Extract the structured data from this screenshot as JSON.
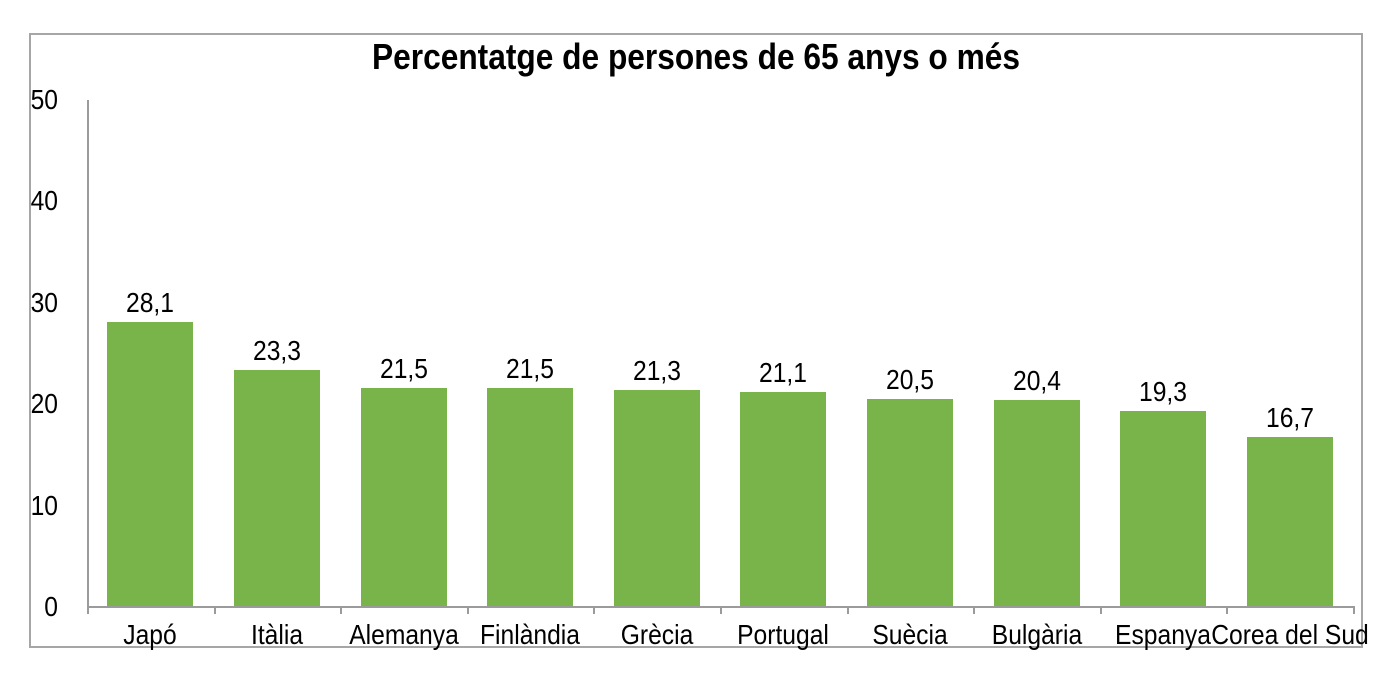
{
  "chart_data": {
    "type": "bar",
    "title": "Percentatge de persones de 65 anys o més",
    "categories": [
      "Japó",
      "Itàlia",
      "Alemanya",
      "Finlàndia",
      "Grècia",
      "Portugal",
      "Suècia",
      "Bulgària",
      "Espanya",
      "Corea del Sud"
    ],
    "values": [
      28.1,
      23.3,
      21.5,
      21.5,
      21.3,
      21.1,
      20.5,
      20.4,
      19.3,
      16.7
    ],
    "value_labels": [
      "28,1",
      "23,3",
      "21,5",
      "21,5",
      "21,3",
      "21,1",
      "20,5",
      "20,4",
      "19,3",
      "16,7"
    ],
    "xlabel": "",
    "ylabel": "",
    "ylim": [
      0,
      50
    ],
    "yticks": [
      0,
      10,
      20,
      30,
      40,
      50
    ],
    "grid": false,
    "legend": false,
    "bar_color": "#79b44a",
    "axis_color": "#9b9b9b",
    "frame_border_color": "#a6a6a6",
    "text_color": "#000000",
    "background_color": "#ffffff"
  }
}
